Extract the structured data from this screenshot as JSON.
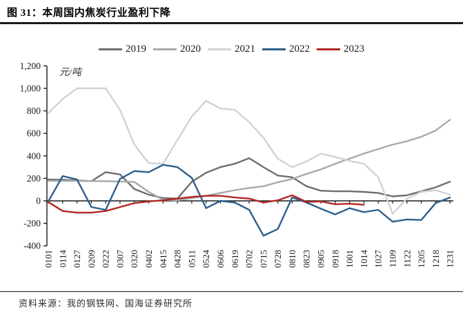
{
  "header": {
    "title": "图 31：本周国内焦炭行业盈利下降"
  },
  "footer": {
    "source": "资料来源：我的钢铁网、国海证券研究所"
  },
  "chart_data": {
    "type": "line",
    "title": "",
    "unit_label": "元/吨",
    "xlabel": "",
    "ylabel": "元/吨",
    "ylim": [
      -400,
      1200
    ],
    "ytick_step": 200,
    "grid": false,
    "legend_position": "top",
    "axis_color": "#1a1a1a",
    "categories": [
      "0101",
      "0114",
      "0127",
      "0209",
      "0222",
      "0307",
      "0320",
      "0402",
      "0415",
      "0428",
      "0511",
      "0524",
      "0606",
      "0619",
      "0702",
      "0715",
      "0728",
      "0810",
      "0823",
      "0905",
      "0918",
      "1001",
      "1014",
      "1027",
      "1109",
      "1122",
      "1205",
      "1218",
      "1231"
    ],
    "series": [
      {
        "name": "2019",
        "color": "#6f6f6f",
        "values": [
          190,
          188,
          182,
          175,
          255,
          235,
          105,
          55,
          25,
          20,
          170,
          250,
          300,
          330,
          380,
          300,
          225,
          210,
          130,
          90,
          85,
          85,
          80,
          70,
          40,
          50,
          85,
          120,
          170
        ]
      },
      {
        "name": "2020",
        "color": "#a9a9a9",
        "values": [
          178,
          178,
          177,
          176,
          175,
          172,
          168,
          80,
          10,
          5,
          25,
          45,
          70,
          95,
          115,
          130,
          165,
          195,
          240,
          280,
          330,
          375,
          420,
          460,
          500,
          530,
          570,
          625,
          720
        ]
      },
      {
        "name": "2021",
        "color": "#d2d2d2",
        "values": [
          780,
          905,
          1000,
          1000,
          1000,
          810,
          500,
          335,
          330,
          540,
          750,
          890,
          820,
          810,
          700,
          560,
          375,
          300,
          350,
          420,
          390,
          355,
          330,
          210,
          -115,
          20,
          80,
          95,
          55
        ]
      },
      {
        "name": "2022",
        "color": "#2e5f8c",
        "values": [
          -5,
          220,
          190,
          -55,
          -80,
          195,
          265,
          255,
          320,
          300,
          205,
          -65,
          0,
          -15,
          -80,
          -310,
          -250,
          30,
          -15,
          -70,
          -120,
          -65,
          -100,
          -80,
          -185,
          -165,
          -170,
          -20,
          30
        ]
      },
      {
        "name": "2023",
        "color": "#b22822",
        "values": [
          -10,
          -90,
          -105,
          -105,
          -90,
          -55,
          -20,
          -5,
          5,
          20,
          35,
          45,
          45,
          30,
          20,
          -15,
          5,
          50,
          -10,
          -5,
          -30,
          -25,
          -35,
          null,
          null,
          null,
          null,
          null,
          null
        ]
      }
    ]
  }
}
